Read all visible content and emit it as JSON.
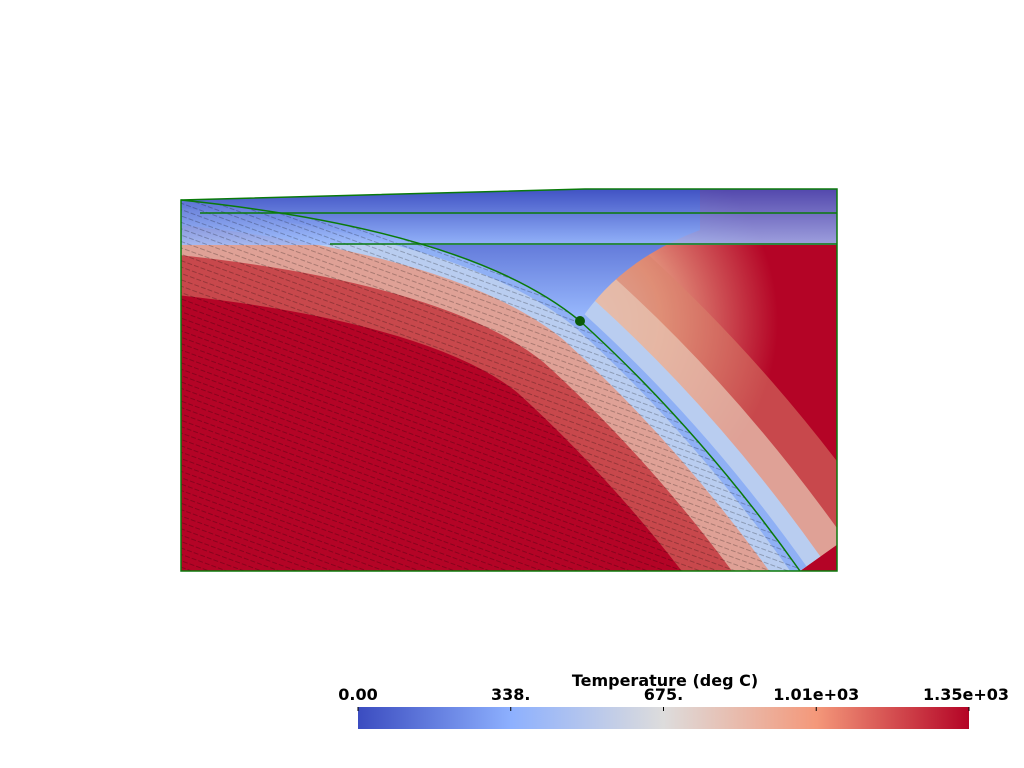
{
  "colorbar": {
    "title": "Temperature (deg C)",
    "range": [
      0,
      1350
    ],
    "ticks": [
      {
        "value": 0,
        "label": "0.00"
      },
      {
        "value": 337.5,
        "label": "338."
      },
      {
        "value": 675,
        "label": "675."
      },
      {
        "value": 1012.5,
        "label": "1.01e+03"
      },
      {
        "value": 1350,
        "label": "1.35e+03"
      }
    ]
  }
}
